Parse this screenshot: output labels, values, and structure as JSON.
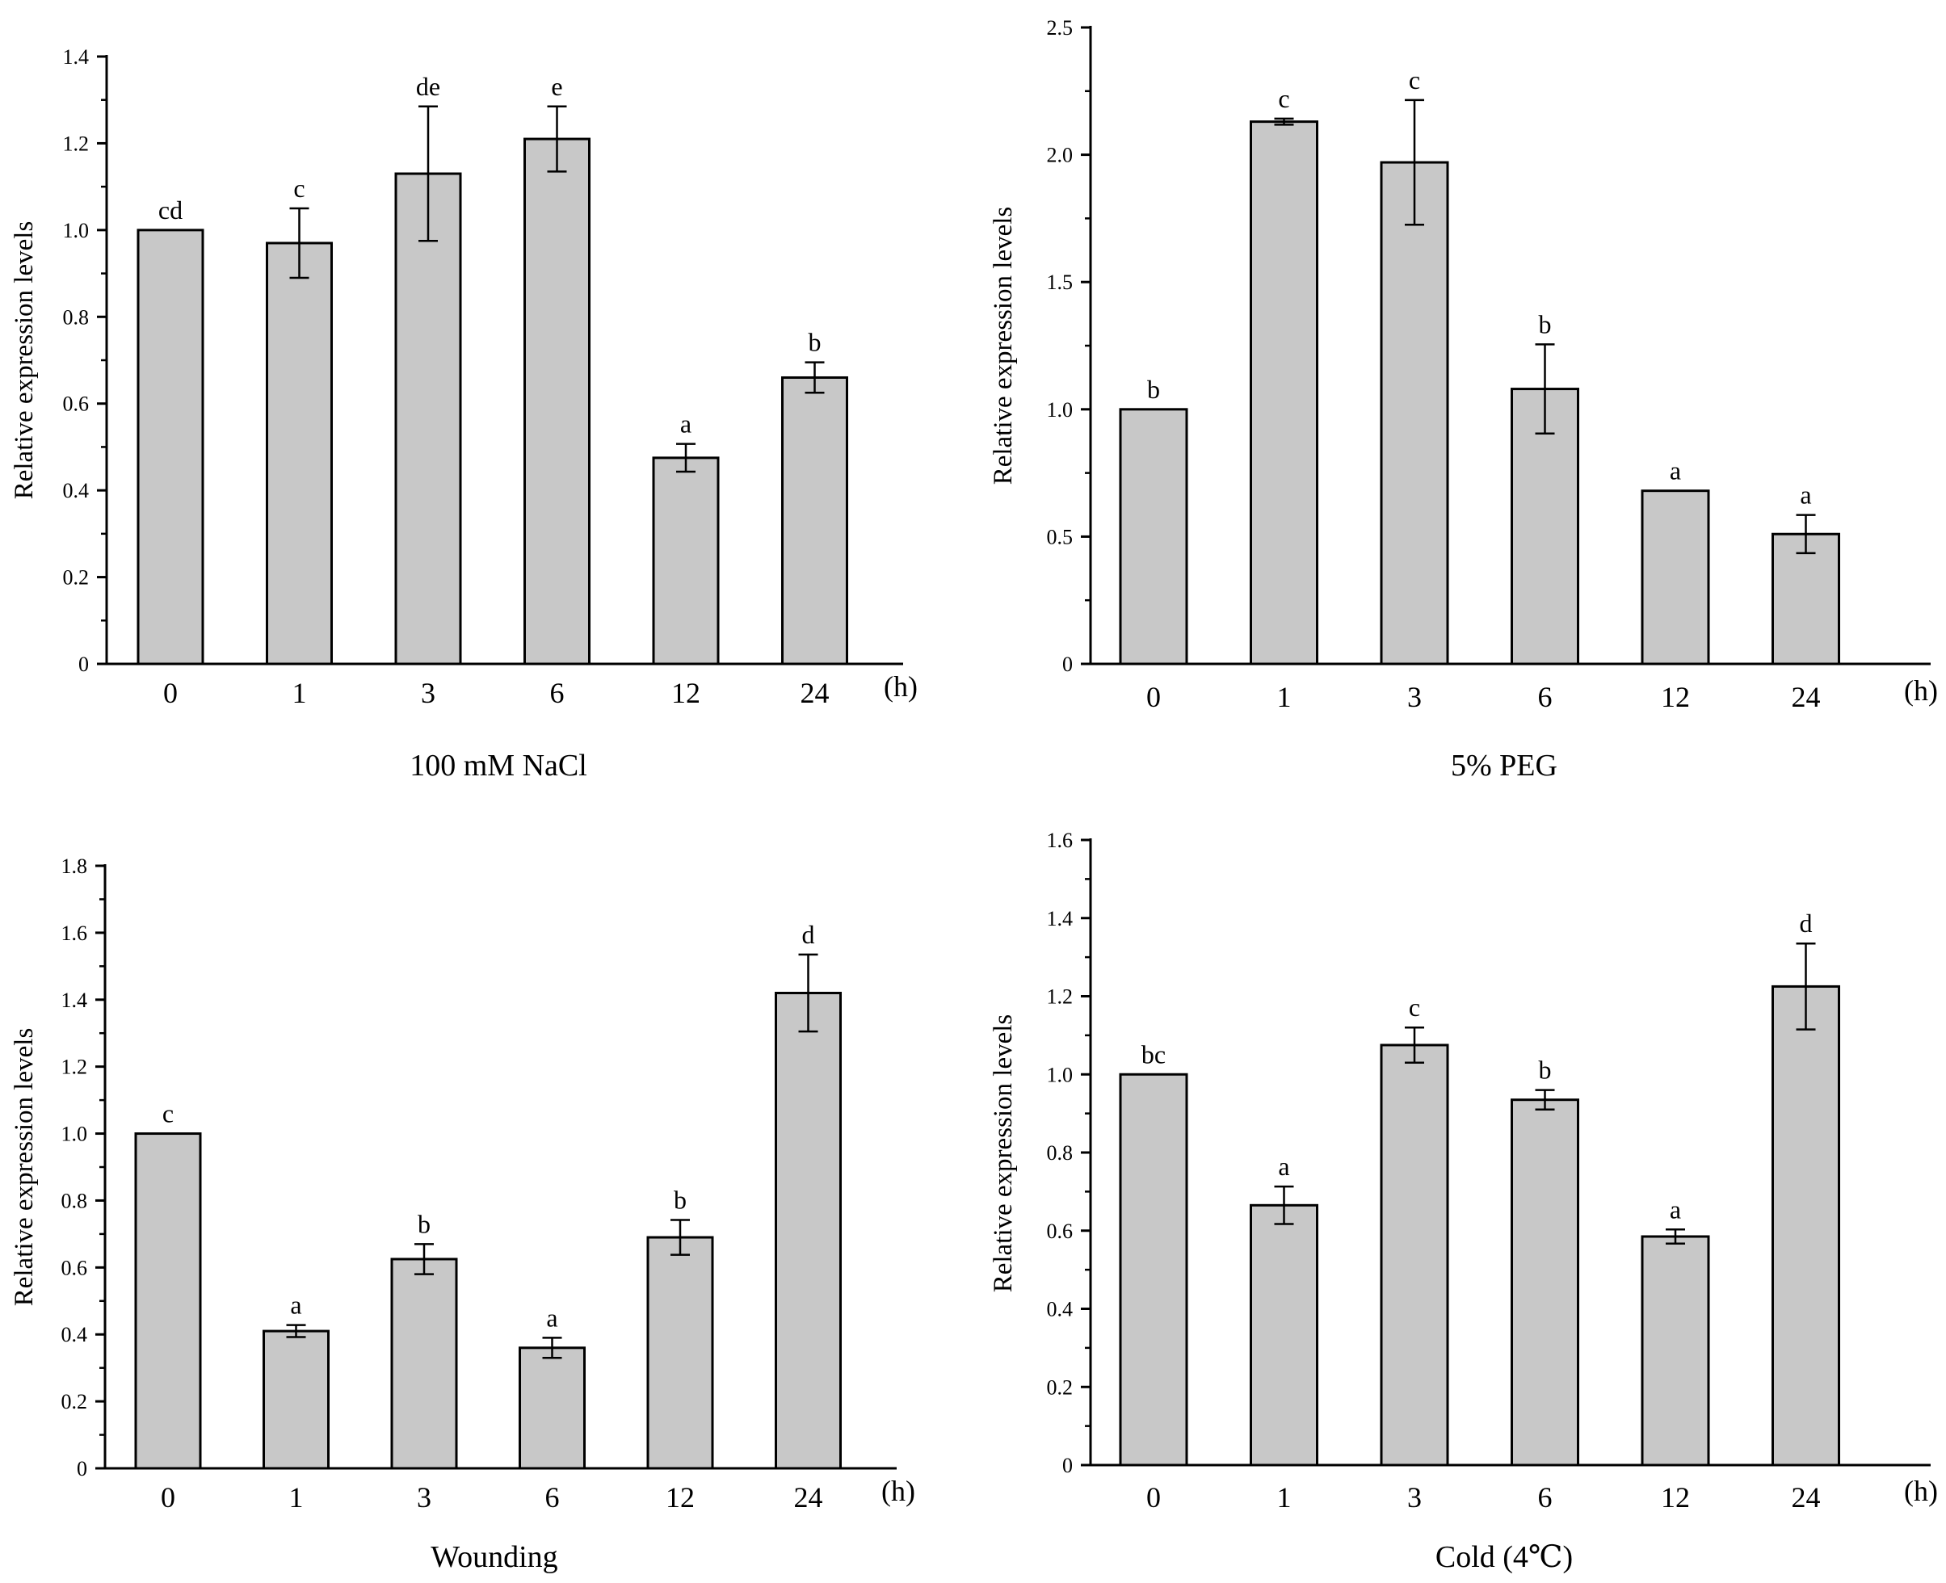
{
  "chart_data": [
    {
      "type": "bar",
      "xlabel": "100 mM NaCl",
      "ylabel": "Relative expression levels",
      "x_unit": "(h)",
      "categories": [
        "0",
        "1",
        "3",
        "6",
        "12",
        "24"
      ],
      "values": [
        1.0,
        0.97,
        1.13,
        1.21,
        0.475,
        0.66
      ],
      "errors": [
        0.0,
        0.08,
        0.155,
        0.075,
        0.032,
        0.035
      ],
      "significance": [
        "cd",
        "c",
        "de",
        "e",
        "a",
        "b"
      ],
      "ylim": [
        0,
        1.4
      ],
      "yticks": [
        0,
        0.2,
        0.4,
        0.6,
        0.8,
        1.0,
        1.2,
        1.4
      ],
      "ytick_labels": [
        "0",
        "0.2",
        "0.4",
        "0.6",
        "0.8",
        "1.0",
        "1.2",
        "1.4"
      ],
      "bar_color": "#c8c8c8"
    },
    {
      "type": "bar",
      "xlabel": "5% PEG",
      "ylabel": "Relative expression levels",
      "x_unit": "(h)",
      "categories": [
        "0",
        "1",
        "3",
        "6",
        "12",
        "24"
      ],
      "values": [
        1.0,
        2.13,
        1.97,
        1.08,
        0.68,
        0.51
      ],
      "errors": [
        0.0,
        0.012,
        0.245,
        0.175,
        0.0,
        0.075
      ],
      "significance": [
        "b",
        "c",
        "c",
        "b",
        "a",
        "a"
      ],
      "ylim": [
        0,
        2.5
      ],
      "yticks": [
        0,
        0.5,
        1.0,
        1.5,
        2.0,
        2.5
      ],
      "ytick_labels": [
        "0",
        "0.5",
        "1.0",
        "1.5",
        "2.0",
        "2.5"
      ],
      "bar_color": "#c8c8c8"
    },
    {
      "type": "bar",
      "xlabel": "Wounding",
      "ylabel": "Relative expression levels",
      "x_unit": "(h)",
      "categories": [
        "0",
        "1",
        "3",
        "6",
        "12",
        "24"
      ],
      "values": [
        1.0,
        0.41,
        0.625,
        0.36,
        0.69,
        1.42
      ],
      "errors": [
        0.0,
        0.018,
        0.045,
        0.03,
        0.052,
        0.115
      ],
      "significance": [
        "c",
        "a",
        "b",
        "a",
        "b",
        "d"
      ],
      "ylim": [
        0,
        1.8
      ],
      "yticks": [
        0,
        0.2,
        0.4,
        0.6,
        0.8,
        1.0,
        1.2,
        1.4,
        1.6,
        1.8
      ],
      "ytick_labels": [
        "0",
        "0.2",
        "0.4",
        "0.6",
        "0.8",
        "1.0",
        "1.2",
        "1.4",
        "1.6",
        "1.8"
      ],
      "bar_color": "#c8c8c8"
    },
    {
      "type": "bar",
      "xlabel": "Cold (4℃)",
      "ylabel": "Relative expression levels",
      "x_unit": "(h)",
      "categories": [
        "0",
        "1",
        "3",
        "6",
        "12",
        "24"
      ],
      "values": [
        1.0,
        0.665,
        1.075,
        0.935,
        0.585,
        1.225
      ],
      "errors": [
        0.0,
        0.048,
        0.045,
        0.025,
        0.018,
        0.11
      ],
      "significance": [
        "bc",
        "a",
        "c",
        "b",
        "a",
        "d"
      ],
      "ylim": [
        0,
        1.6
      ],
      "yticks": [
        0,
        0.2,
        0.4,
        0.6,
        0.8,
        1.0,
        1.2,
        1.4,
        1.6
      ],
      "ytick_labels": [
        "0",
        "0.2",
        "0.4",
        "0.6",
        "0.8",
        "1.0",
        "1.2",
        "1.4",
        "1.6"
      ],
      "bar_color": "#c8c8c8"
    }
  ]
}
